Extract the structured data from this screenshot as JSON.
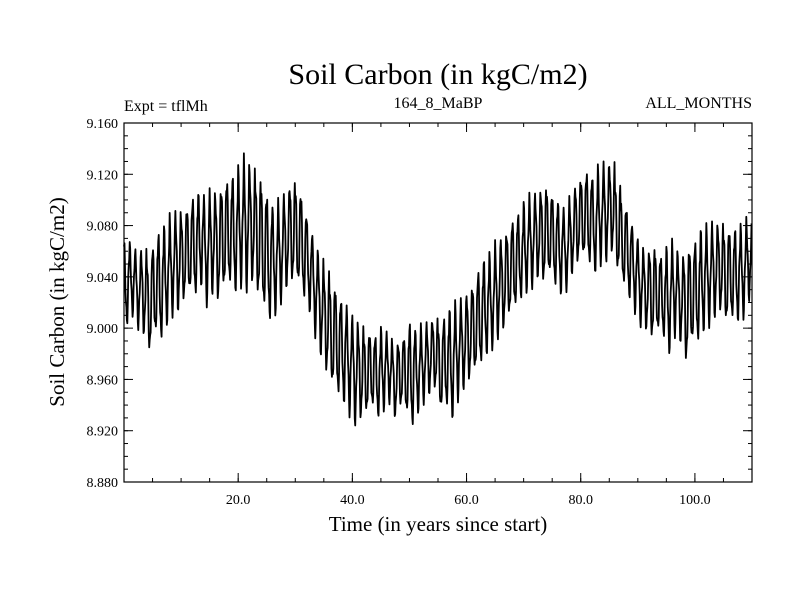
{
  "chart_data": {
    "type": "line",
    "title": "Soil Carbon (in kgC/m2)",
    "subtitle_left": "Expt = tflMh",
    "subtitle_center": "164_8_MaBP",
    "subtitle_right": "ALL_MONTHS",
    "xlabel": "Time (in years since start)",
    "ylabel": "Soil Carbon (in kgC/m2)",
    "xlim": [
      0,
      110
    ],
    "ylim": [
      8.88,
      9.16
    ],
    "x_ticks": [
      20,
      40,
      60,
      80,
      100
    ],
    "x_tick_labels": [
      "20.0",
      "40.0",
      "60.0",
      "80.0",
      "100.0"
    ],
    "y_ticks": [
      8.88,
      8.92,
      8.96,
      9.0,
      9.04,
      9.08,
      9.12,
      9.16
    ],
    "y_tick_labels": [
      "8.880",
      "8.920",
      "8.960",
      "9.000",
      "9.040",
      "9.080",
      "9.120",
      "9.160"
    ],
    "grid": false,
    "series": [
      {
        "name": "Soil Carbon",
        "color": "#000000",
        "x_start": 0,
        "x_step": 1,
        "annual_max": [
          9.07,
          9.068,
          9.062,
          9.066,
          9.06,
          9.07,
          9.078,
          9.082,
          9.09,
          9.096,
          9.094,
          9.1,
          9.106,
          9.108,
          9.104,
          9.112,
          9.11,
          9.118,
          9.12,
          9.122,
          9.128,
          9.138,
          9.13,
          9.124,
          9.116,
          9.106,
          9.096,
          9.102,
          9.11,
          9.12,
          9.114,
          9.104,
          9.086,
          9.072,
          9.06,
          9.05,
          9.04,
          9.032,
          9.024,
          9.018,
          9.012,
          9.006,
          9.0,
          8.998,
          8.996,
          9.002,
          8.998,
          8.99,
          8.994,
          8.998,
          9.008,
          9.0,
          9.004,
          9.008,
          9.012,
          9.006,
          9.012,
          9.018,
          9.022,
          9.026,
          9.034,
          9.04,
          9.05,
          9.056,
          9.06,
          9.07,
          9.076,
          9.082,
          9.09,
          9.092,
          9.1,
          9.106,
          9.11,
          9.114,
          9.112,
          9.104,
          9.1,
          9.094,
          9.106,
          9.118,
          9.122,
          9.126,
          9.12,
          9.128,
          9.132,
          9.134,
          9.12,
          9.104,
          9.094,
          9.08,
          9.07,
          9.062,
          9.068,
          9.062,
          9.058,
          9.066,
          9.07,
          9.06,
          9.064,
          9.068,
          9.072,
          9.08,
          9.082,
          9.086,
          9.086,
          9.082,
          9.078,
          9.08,
          9.082,
          9.088
        ],
        "annual_min": [
          9.0,
          9.008,
          8.998,
          8.992,
          8.978,
          8.992,
          8.988,
          9.0,
          9.008,
          9.01,
          9.018,
          9.024,
          9.022,
          9.03,
          9.016,
          9.024,
          9.018,
          9.026,
          9.03,
          9.024,
          9.03,
          9.026,
          9.032,
          9.02,
          9.01,
          9.002,
          9.008,
          9.018,
          9.028,
          9.032,
          9.03,
          9.02,
          9.01,
          8.992,
          8.976,
          8.962,
          8.95,
          8.944,
          8.938,
          8.93,
          8.922,
          8.926,
          8.93,
          8.936,
          8.928,
          8.934,
          8.94,
          8.928,
          8.936,
          8.93,
          8.92,
          8.932,
          8.94,
          8.946,
          8.95,
          8.932,
          8.936,
          8.926,
          8.942,
          8.95,
          8.956,
          8.962,
          8.968,
          8.976,
          8.982,
          8.99,
          8.996,
          9.006,
          9.012,
          9.02,
          9.026,
          9.03,
          9.036,
          9.032,
          9.038,
          9.03,
          9.024,
          9.028,
          9.04,
          9.048,
          9.052,
          9.046,
          9.04,
          9.048,
          9.05,
          9.056,
          9.04,
          9.03,
          9.02,
          9.01,
          9.0,
          8.996,
          8.988,
          8.994,
          8.99,
          8.978,
          8.992,
          8.986,
          8.97,
          8.984,
          8.986,
          8.994,
          9.0,
          9.006,
          9.01,
          9.0,
          9.004,
          9.002,
          9.006,
          9.02
        ]
      }
    ]
  }
}
